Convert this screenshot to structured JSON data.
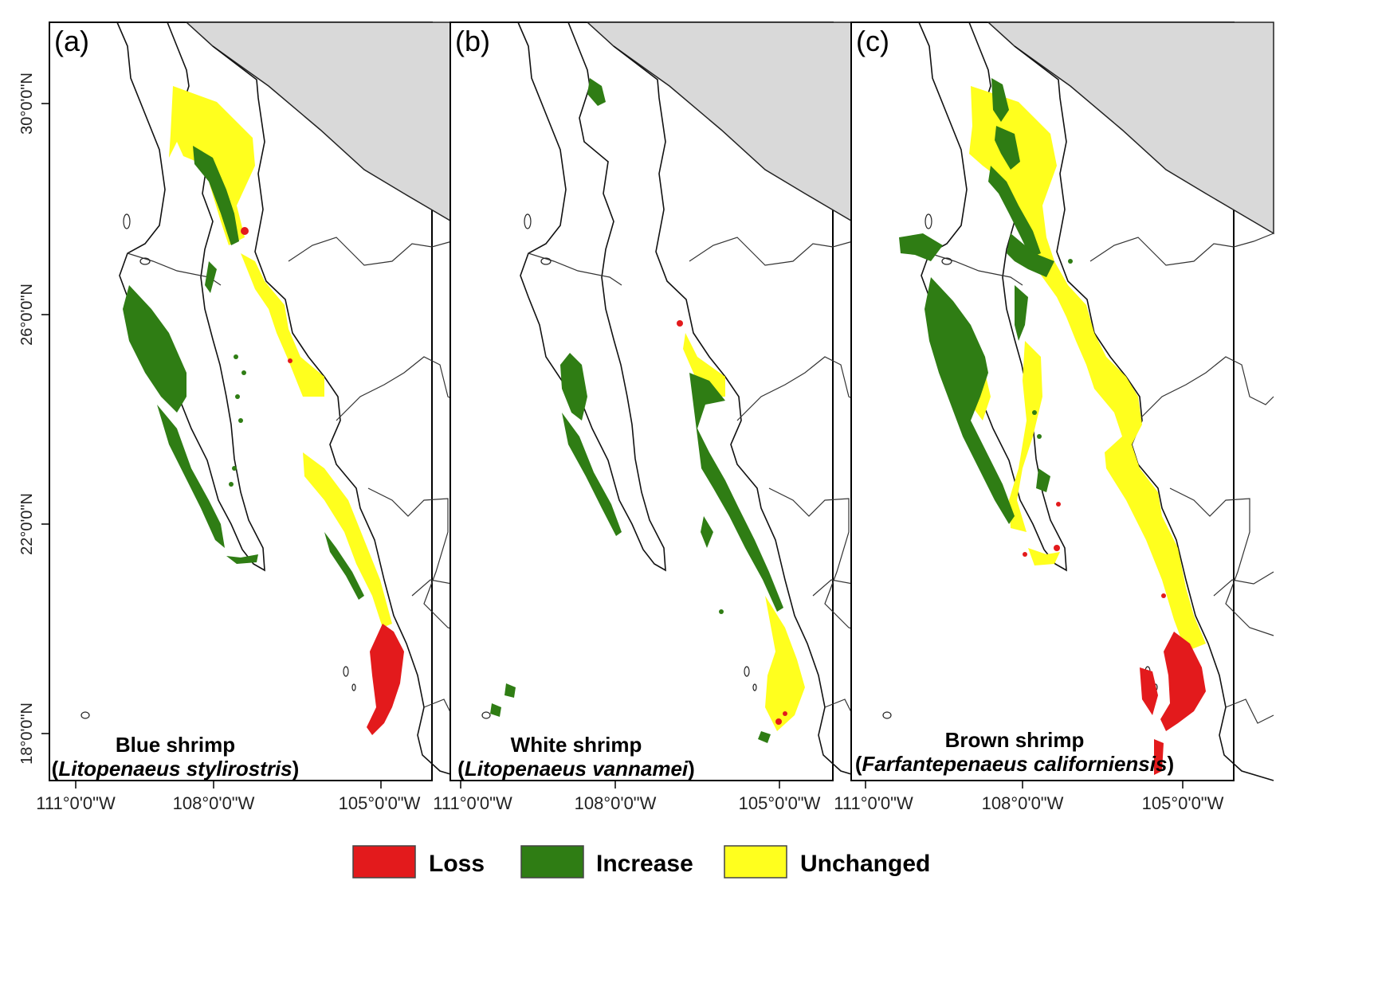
{
  "panels": [
    {
      "label": "(a)",
      "common_name": "Blue shrimp",
      "sci_open": "(",
      "scientific_name": "Litopenaeus stylirostris",
      "sci_close": ")"
    },
    {
      "label": "(b)",
      "common_name": "White shrimp",
      "sci_open": "(",
      "scientific_name": "Litopenaeus vannamei",
      "sci_close": ")"
    },
    {
      "label": "(c)",
      "common_name": "Brown shrimp",
      "sci_open": "(",
      "scientific_name": "Farfantepenaeus californiensis",
      "sci_close": ")"
    }
  ],
  "x_ticks": [
    "111°0'0\"W",
    "108°0'0\"W",
    "105°0'0\"W"
  ],
  "y_ticks": [
    "30°0'0\"N",
    "26°0'0\"N",
    "22°0'0\"N",
    "18°0'0\"N"
  ],
  "legend": [
    {
      "label": "Loss",
      "color": "#e31a1c"
    },
    {
      "label": "Increase",
      "color": "#2f7d14"
    },
    {
      "label": "Unchanged",
      "color": "#ffff1e"
    }
  ],
  "colors": {
    "land_outside": "#d9d9d9",
    "loss": "#e31a1c",
    "increase": "#2f7d14",
    "unchanged": "#ffff1e"
  }
}
